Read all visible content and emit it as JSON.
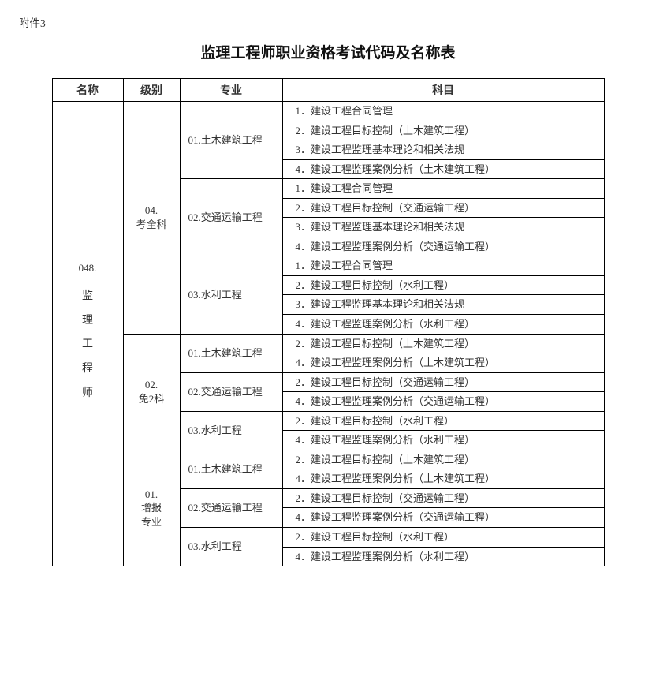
{
  "attachment_label": "附件3",
  "title": "监理工程师职业资格考试代码及名称表",
  "table": {
    "columns": [
      "名称",
      "级别",
      "专业",
      "科目"
    ],
    "name_cell": {
      "code": "048.",
      "chars": [
        "监",
        "理",
        "工",
        "程",
        "师"
      ]
    },
    "levels": [
      {
        "label": "04.\n考全科",
        "majors": [
          {
            "label": "01.土木建筑工程",
            "subjects": [
              "1．建设工程合同管理",
              "2．建设工程目标控制（土木建筑工程）",
              "3．建设工程监理基本理论和相关法规",
              "4．建设工程监理案例分析（土木建筑工程）"
            ]
          },
          {
            "label": "02.交通运输工程",
            "subjects": [
              "1．建设工程合同管理",
              "2．建设工程目标控制（交通运输工程）",
              "3．建设工程监理基本理论和相关法规",
              "4．建设工程监理案例分析（交通运输工程）"
            ]
          },
          {
            "label": "03.水利工程",
            "subjects": [
              "1．建设工程合同管理",
              "2．建设工程目标控制（水利工程）",
              "3．建设工程监理基本理论和相关法规",
              "4．建设工程监理案例分析（水利工程）"
            ]
          }
        ]
      },
      {
        "label": "02.\n免2科",
        "majors": [
          {
            "label": "01.土木建筑工程",
            "subjects": [
              "2．建设工程目标控制（土木建筑工程）",
              "4．建设工程监理案例分析（土木建筑工程）"
            ]
          },
          {
            "label": "02.交通运输工程",
            "subjects": [
              "2．建设工程目标控制（交通运输工程）",
              "4．建设工程监理案例分析（交通运输工程）"
            ]
          },
          {
            "label": "03.水利工程",
            "subjects": [
              "2．建设工程目标控制（水利工程）",
              "4．建设工程监理案例分析（水利工程）"
            ]
          }
        ]
      },
      {
        "label": "01.\n增报\n专业",
        "majors": [
          {
            "label": "01.土木建筑工程",
            "subjects": [
              "2．建设工程目标控制（土木建筑工程）",
              "4．建设工程监理案例分析（土木建筑工程）"
            ]
          },
          {
            "label": "02.交通运输工程",
            "subjects": [
              "2．建设工程目标控制（交通运输工程）",
              "4．建设工程监理案例分析（交通运输工程）"
            ]
          },
          {
            "label": "03.水利工程",
            "subjects": [
              "2．建设工程目标控制（水利工程）",
              "4．建设工程监理案例分析（水利工程）"
            ]
          }
        ]
      }
    ]
  }
}
